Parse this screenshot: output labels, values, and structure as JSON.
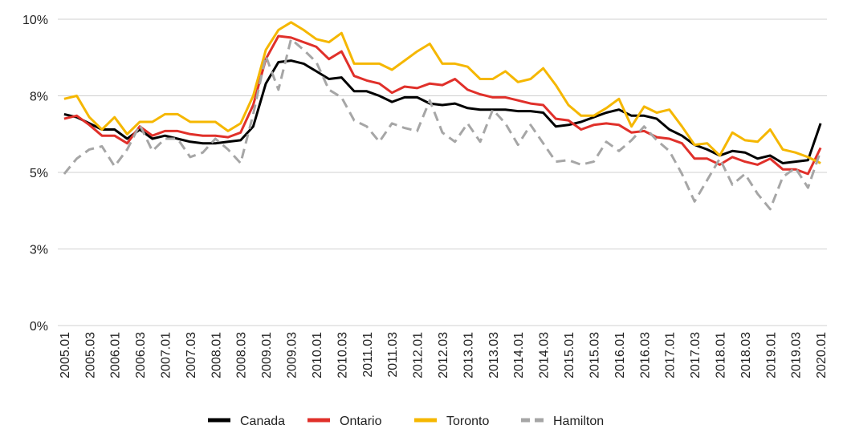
{
  "chart_data": {
    "type": "line",
    "categories": [
      "2005.01",
      null,
      "2005.03",
      null,
      "2006.01",
      null,
      "2006.03",
      null,
      "2007.01",
      null,
      "2007.03",
      null,
      "2008.01",
      null,
      "2008.03",
      null,
      "2009.01",
      null,
      "2009.03",
      null,
      "2010.01",
      null,
      "2010.03",
      null,
      "2011.01",
      null,
      "2011.03",
      null,
      "2012.01",
      null,
      "2012.03",
      null,
      "2013.01",
      null,
      "2013.03",
      null,
      "2014.01",
      null,
      "2014.03",
      null,
      "2015.01",
      null,
      "2015.03",
      null,
      "2016.01",
      null,
      "2016.03",
      null,
      "2017.01",
      null,
      "2017.03",
      null,
      "2018.01",
      null,
      "2018.03",
      null,
      "2019.01",
      null,
      "2019.03",
      null,
      "2020.01"
    ],
    "series": [
      {
        "name": "Canada",
        "color": "#000000",
        "values": [
          6.9,
          6.8,
          6.6,
          6.4,
          6.4,
          6.1,
          6.4,
          6.1,
          6.2,
          6.1,
          6.0,
          5.95,
          5.95,
          6.0,
          6.05,
          6.5,
          7.9,
          8.6,
          8.65,
          8.55,
          8.3,
          8.05,
          8.1,
          7.65,
          7.65,
          7.5,
          7.3,
          7.45,
          7.45,
          7.25,
          7.2,
          7.25,
          7.1,
          7.05,
          7.05,
          7.05,
          7.0,
          7.0,
          6.95,
          6.5,
          6.55,
          6.65,
          6.8,
          6.95,
          7.05,
          6.85,
          6.85,
          6.75,
          6.4,
          6.2,
          5.9,
          5.75,
          5.55,
          5.7,
          5.65,
          5.45,
          5.55,
          5.3,
          5.35,
          5.4,
          6.6
        ]
      },
      {
        "name": "Ontario",
        "color": "#e0302a",
        "values": [
          6.75,
          6.85,
          6.55,
          6.2,
          6.2,
          5.95,
          6.5,
          6.2,
          6.35,
          6.35,
          6.25,
          6.2,
          6.2,
          6.15,
          6.3,
          7.2,
          8.7,
          9.45,
          9.4,
          9.25,
          9.1,
          8.7,
          8.95,
          8.15,
          8.0,
          7.9,
          7.6,
          7.8,
          7.75,
          7.9,
          7.85,
          8.05,
          7.7,
          7.55,
          7.45,
          7.45,
          7.35,
          7.25,
          7.2,
          6.75,
          6.7,
          6.4,
          6.55,
          6.6,
          6.55,
          6.3,
          6.35,
          6.15,
          6.1,
          5.95,
          5.45,
          5.45,
          5.25,
          5.5,
          5.35,
          5.25,
          5.45,
          5.1,
          5.1,
          4.95,
          5.8
        ]
      },
      {
        "name": "Toronto",
        "color": "#f5b700",
        "values": [
          7.4,
          7.5,
          6.8,
          6.4,
          6.8,
          6.25,
          6.65,
          6.65,
          6.9,
          6.9,
          6.65,
          6.65,
          6.65,
          6.35,
          6.6,
          7.5,
          9.0,
          9.65,
          9.9,
          9.65,
          9.35,
          9.25,
          9.55,
          8.55,
          8.55,
          8.55,
          8.35,
          8.65,
          8.95,
          9.2,
          8.55,
          8.55,
          8.45,
          8.05,
          8.05,
          8.3,
          7.95,
          8.05,
          8.4,
          7.85,
          7.2,
          6.85,
          6.85,
          7.1,
          7.4,
          6.5,
          7.15,
          6.95,
          7.05,
          6.5,
          5.9,
          5.95,
          5.55,
          6.3,
          6.05,
          6.0,
          6.4,
          5.75,
          5.65,
          5.5,
          5.3
        ]
      },
      {
        "name": "Hamilton",
        "color": "#a6a6a6",
        "dashed": true,
        "values": [
          4.95,
          5.45,
          5.75,
          5.85,
          5.2,
          5.75,
          6.55,
          5.7,
          6.1,
          6.1,
          5.5,
          5.65,
          6.1,
          5.75,
          5.3,
          6.9,
          8.8,
          7.7,
          9.35,
          9.0,
          8.6,
          7.7,
          7.45,
          6.7,
          6.5,
          6.0,
          6.6,
          6.45,
          6.35,
          7.35,
          6.3,
          6.0,
          6.6,
          6.0,
          7.05,
          6.6,
          5.9,
          6.55,
          5.95,
          5.35,
          5.4,
          5.25,
          5.35,
          6.0,
          5.7,
          6.05,
          6.5,
          6.05,
          5.7,
          4.95,
          4.05,
          4.75,
          5.45,
          4.6,
          4.95,
          4.3,
          3.8,
          4.85,
          5.15,
          4.5,
          5.7
        ]
      }
    ],
    "ylim": [
      0,
      10
    ],
    "yticks": [
      {
        "value": 0,
        "label": "0%"
      },
      {
        "value": 2.5,
        "label": "3%"
      },
      {
        "value": 5,
        "label": "5%"
      },
      {
        "value": 7.5,
        "label": "8%"
      },
      {
        "value": 10,
        "label": "10%"
      }
    ],
    "grid": true,
    "legend": "bottom"
  }
}
